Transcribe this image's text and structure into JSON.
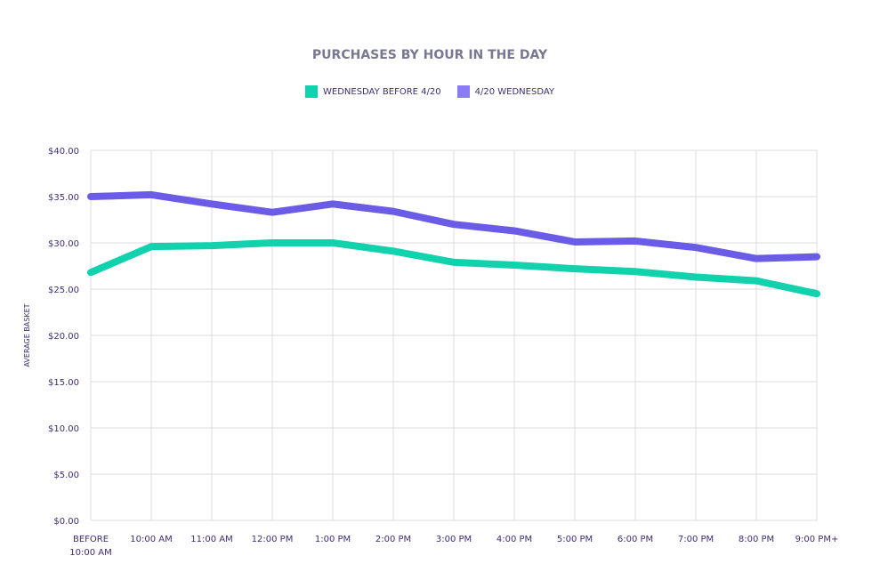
{
  "chart_data": {
    "type": "line",
    "title": "PURCHASES BY HOUR IN THE DAY",
    "xlabel": "",
    "ylabel": "AVERAGE BASKET",
    "ylim": [
      0,
      40
    ],
    "yticks": [
      "$0.00",
      "$5.00",
      "$10.00",
      "$15.00",
      "$20.00",
      "$25.00",
      "$30.00",
      "$35.00",
      "$40.00"
    ],
    "categories": [
      [
        "BEFORE",
        "10:00 AM"
      ],
      [
        "10:00 AM"
      ],
      [
        "11:00 AM"
      ],
      [
        "12:00 PM"
      ],
      [
        "1:00 PM"
      ],
      [
        "2:00 PM"
      ],
      [
        "3:00 PM"
      ],
      [
        "4:00 PM"
      ],
      [
        "5:00 PM"
      ],
      [
        "6:00 PM"
      ],
      [
        "7:00 PM"
      ],
      [
        "8:00 PM"
      ],
      [
        "9:00 PM+"
      ]
    ],
    "grid": true,
    "legend_position": "top-center",
    "series": [
      {
        "name": "WEDNESDAY BEFORE 4/20",
        "color": "#12d1ad",
        "legend_color": "#12d1ad",
        "values": [
          26.8,
          29.6,
          29.7,
          30.0,
          30.0,
          29.1,
          27.9,
          27.6,
          27.2,
          26.9,
          26.3,
          25.9,
          24.5
        ]
      },
      {
        "name": "4/20 WEDNESDAY",
        "color": "#6b5ce7",
        "legend_color": "#8a7cf5",
        "values": [
          35.0,
          35.2,
          34.2,
          33.3,
          34.2,
          33.4,
          32.0,
          31.3,
          30.1,
          30.2,
          29.5,
          28.3,
          28.5
        ]
      }
    ]
  }
}
